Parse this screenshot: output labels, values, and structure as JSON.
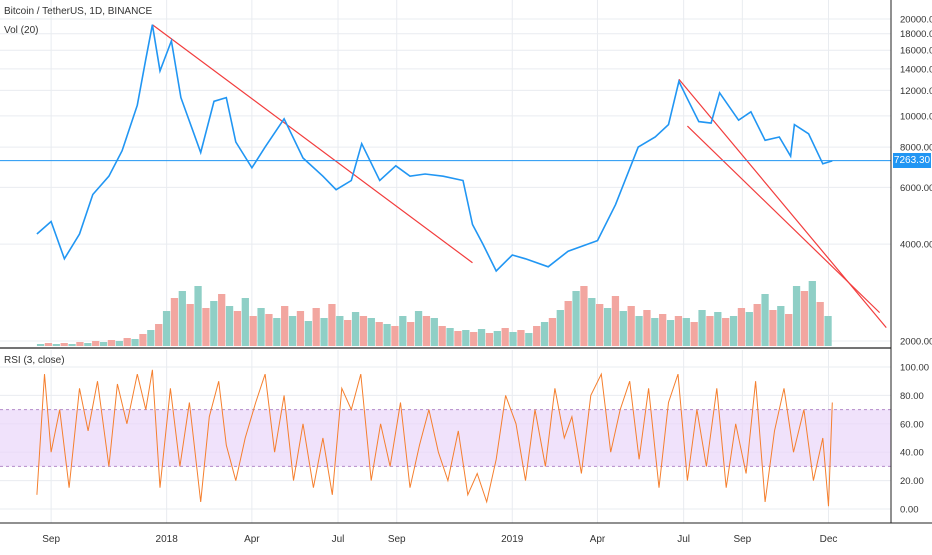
{
  "legend": {
    "main": "Bitcoin / TetherUS, 1D, BINANCE",
    "volume": "Vol (20)",
    "rsi": "RSI (3, close)"
  },
  "current_price_label": "7263.30",
  "colors": {
    "price_line": "#2196f3",
    "trendline": "#f23d3d",
    "rsi_line": "#f57f2e",
    "rsi_band": "#e9d5fa",
    "volume_up": "#8fcfc6",
    "volume_down": "#f2a6a0",
    "grid": "#e9ecf0",
    "axis_text": "#333333",
    "price_badge": "#2196f3"
  },
  "chart_data": [
    {
      "type": "line",
      "title": "Bitcoin / TetherUS, 1D, BINANCE",
      "log_scale": true,
      "grid": true,
      "x_tick_labels": [
        "Sep",
        "2018",
        "Apr",
        "Jul",
        "Sep",
        "2019",
        "Apr",
        "Jul",
        "Sep",
        "Dec"
      ],
      "y_tick_labels": [
        "2000.00",
        "4000.00",
        "6000.00",
        "8000.00",
        "10000.00",
        "12000.00",
        "14000.00",
        "16000.00",
        "18000.00",
        "20000.00"
      ],
      "ylim": [
        2000,
        20000
      ],
      "series": [
        {
          "name": "Bitcoin / TetherUS",
          "x": [
            "2017-08-17",
            "2017-09-01",
            "2017-09-15",
            "2017-10-01",
            "2017-10-15",
            "2017-11-01",
            "2017-11-15",
            "2017-12-01",
            "2017-12-10",
            "2017-12-17",
            "2017-12-25",
            "2018-01-06",
            "2018-01-16",
            "2018-02-06",
            "2018-02-20",
            "2018-03-05",
            "2018-03-15",
            "2018-04-01",
            "2018-04-15",
            "2018-05-05",
            "2018-05-25",
            "2018-06-15",
            "2018-06-29",
            "2018-07-15",
            "2018-07-26",
            "2018-08-14",
            "2018-08-31",
            "2018-09-15",
            "2018-10-01",
            "2018-10-20",
            "2018-11-10",
            "2018-11-20",
            "2018-12-01",
            "2018-12-15",
            "2019-01-01",
            "2019-01-15",
            "2019-02-08",
            "2019-03-01",
            "2019-04-01",
            "2019-04-20",
            "2019-05-14",
            "2019-06-01",
            "2019-06-15",
            "2019-06-26",
            "2019-07-05",
            "2019-07-17",
            "2019-07-30",
            "2019-08-08",
            "2019-08-28",
            "2019-09-10",
            "2019-09-25",
            "2019-10-10",
            "2019-10-22",
            "2019-10-26",
            "2019-11-10",
            "2019-11-25",
            "2019-12-05"
          ],
          "values": [
            4300,
            4700,
            3600,
            4300,
            5700,
            6500,
            7800,
            10800,
            15000,
            19200,
            13800,
            17100,
            11400,
            7700,
            11100,
            11400,
            8300,
            6900,
            8000,
            9800,
            7400,
            6500,
            5900,
            6300,
            8200,
            6300,
            7000,
            6500,
            6600,
            6500,
            6300,
            4600,
            4000,
            3300,
            3700,
            3600,
            3400,
            3800,
            4100,
            5300,
            8000,
            8600,
            9400,
            12800,
            11300,
            9600,
            9500,
            11800,
            9700,
            10300,
            8400,
            8600,
            7500,
            9400,
            8800,
            7100,
            7250
          ]
        }
      ]
    },
    {
      "type": "line",
      "title": "RSI (3, close)",
      "grid": true,
      "x_tick_labels": [
        "Sep",
        "2018",
        "Apr",
        "Jul",
        "Sep",
        "2019",
        "Apr",
        "Jul",
        "Sep",
        "Dec"
      ],
      "y_tick_labels": [
        "0.00",
        "20.00",
        "40.00",
        "60.00",
        "80.00",
        "100.00"
      ],
      "ylim": [
        0,
        100
      ],
      "band": [
        30,
        70
      ],
      "series": [
        {
          "name": "RSI (3, close)",
          "x": [
            "2017-08-17",
            "2017-08-25",
            "2017-09-01",
            "2017-09-10",
            "2017-09-20",
            "2017-10-01",
            "2017-10-10",
            "2017-10-20",
            "2017-11-01",
            "2017-11-10",
            "2017-11-20",
            "2017-12-01",
            "2017-12-10",
            "2017-12-17",
            "2017-12-25",
            "2018-01-05",
            "2018-01-15",
            "2018-01-25",
            "2018-02-06",
            "2018-02-15",
            "2018-02-25",
            "2018-03-05",
            "2018-03-15",
            "2018-03-25",
            "2018-04-05",
            "2018-04-15",
            "2018-04-25",
            "2018-05-05",
            "2018-05-15",
            "2018-05-25",
            "2018-06-05",
            "2018-06-15",
            "2018-06-25",
            "2018-07-05",
            "2018-07-15",
            "2018-07-25",
            "2018-08-05",
            "2018-08-15",
            "2018-08-25",
            "2018-09-05",
            "2018-09-15",
            "2018-09-25",
            "2018-10-05",
            "2018-10-15",
            "2018-10-25",
            "2018-11-05",
            "2018-11-15",
            "2018-11-25",
            "2018-12-05",
            "2018-12-15",
            "2018-12-25",
            "2019-01-05",
            "2019-01-15",
            "2019-01-25",
            "2019-02-05",
            "2019-02-15",
            "2019-02-25",
            "2019-03-05",
            "2019-03-15",
            "2019-03-25",
            "2019-04-05",
            "2019-04-15",
            "2019-04-25",
            "2019-05-05",
            "2019-05-15",
            "2019-05-25",
            "2019-06-05",
            "2019-06-15",
            "2019-06-25",
            "2019-07-05",
            "2019-07-15",
            "2019-07-25",
            "2019-08-05",
            "2019-08-15",
            "2019-08-25",
            "2019-09-05",
            "2019-09-15",
            "2019-09-25",
            "2019-10-05",
            "2019-10-15",
            "2019-10-25",
            "2019-11-05",
            "2019-11-15",
            "2019-11-25",
            "2019-12-01",
            "2019-12-05"
          ],
          "values": [
            10,
            95,
            40,
            70,
            15,
            85,
            55,
            90,
            30,
            88,
            60,
            95,
            70,
            98,
            15,
            85,
            30,
            75,
            5,
            65,
            90,
            45,
            20,
            50,
            75,
            95,
            40,
            80,
            20,
            60,
            15,
            50,
            10,
            85,
            70,
            95,
            20,
            60,
            30,
            75,
            15,
            45,
            70,
            40,
            20,
            55,
            10,
            25,
            5,
            35,
            80,
            60,
            20,
            70,
            30,
            85,
            50,
            65,
            25,
            80,
            95,
            40,
            70,
            90,
            35,
            85,
            15,
            75,
            95,
            20,
            70,
            30,
            85,
            15,
            60,
            25,
            90,
            5,
            55,
            85,
            40,
            70,
            20,
            50,
            2,
            75
          ]
        }
      ]
    },
    {
      "type": "bar",
      "title": "Vol (20)",
      "x_start": "2017-08-17",
      "x_end": "2019-12-05",
      "series": [
        {
          "name": "Vol (20)",
          "values": [
            2,
            3,
            2,
            3,
            2,
            4,
            3,
            5,
            4,
            6,
            5,
            8,
            7,
            12,
            16,
            22,
            35,
            48,
            55,
            42,
            60,
            38,
            45,
            52,
            40,
            35,
            48,
            30,
            38,
            32,
            28,
            40,
            30,
            35,
            25,
            38,
            28,
            42,
            30,
            26,
            34,
            30,
            28,
            24,
            22,
            20,
            30,
            24,
            35,
            30,
            28,
            20,
            18,
            15,
            16,
            14,
            17,
            13,
            15,
            18,
            14,
            16,
            13,
            20,
            24,
            28,
            36,
            45,
            55,
            60,
            48,
            42,
            38,
            50,
            35,
            40,
            30,
            36,
            28,
            32,
            26,
            30,
            28,
            24,
            36,
            30,
            34,
            28,
            30,
            38,
            34,
            42,
            52,
            36,
            40,
            32,
            60,
            55,
            65,
            44,
            30
          ]
        }
      ]
    }
  ]
}
